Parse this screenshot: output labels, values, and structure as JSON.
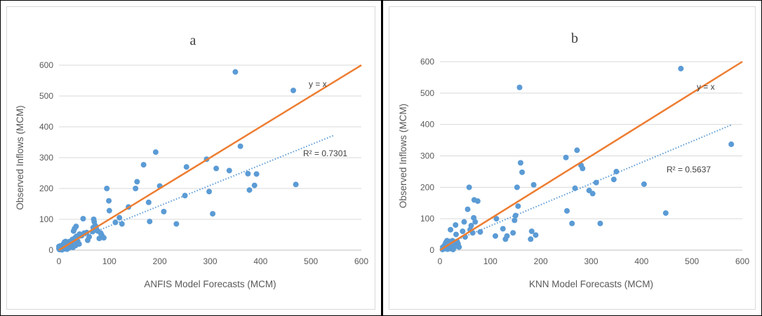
{
  "chart_data": [
    {
      "type": "scatter",
      "title": "a",
      "xlabel": "ANFIS Model Forecasts (MCM)",
      "ylabel": "Observed Inflows (MCM)",
      "xlim": [
        0,
        600
      ],
      "ylim": [
        0,
        600
      ],
      "xticks": [
        "0",
        "100",
        "200",
        "300",
        "400",
        "500",
        "600"
      ],
      "yticks": [
        "0",
        "100",
        "200",
        "300",
        "400",
        "500",
        "600"
      ],
      "grid": true,
      "colors": {
        "points": "#5b9bd5",
        "identity": "#ed7d31",
        "trend": "#5b9bd5"
      },
      "identity_label": "y = x",
      "identity_line": [
        [
          0,
          0
        ],
        [
          600,
          600
        ]
      ],
      "r2_label": "R² = 0.7301",
      "trend_line": [
        [
          0,
          12
        ],
        [
          545,
          372
        ]
      ],
      "points": [
        [
          0,
          5
        ],
        [
          0,
          12
        ],
        [
          1,
          2
        ],
        [
          2,
          8
        ],
        [
          3,
          14
        ],
        [
          4,
          3
        ],
        [
          5,
          10
        ],
        [
          6,
          1
        ],
        [
          8,
          6
        ],
        [
          9,
          20
        ],
        [
          10,
          4
        ],
        [
          11,
          26
        ],
        [
          12,
          15
        ],
        [
          13,
          28
        ],
        [
          14,
          9
        ],
        [
          15,
          18
        ],
        [
          16,
          3
        ],
        [
          17,
          22
        ],
        [
          18,
          11
        ],
        [
          19,
          27
        ],
        [
          20,
          7
        ],
        [
          21,
          24
        ],
        [
          22,
          16
        ],
        [
          24,
          30
        ],
        [
          25,
          13
        ],
        [
          26,
          20
        ],
        [
          27,
          35
        ],
        [
          28,
          9
        ],
        [
          29,
          62
        ],
        [
          30,
          25
        ],
        [
          31,
          70
        ],
        [
          32,
          40
        ],
        [
          33,
          15
        ],
        [
          34,
          77
        ],
        [
          35,
          45
        ],
        [
          36,
          20
        ],
        [
          37,
          30
        ],
        [
          40,
          20
        ],
        [
          41,
          52
        ],
        [
          45,
          47
        ],
        [
          48,
          102
        ],
        [
          50,
          55
        ],
        [
          55,
          57
        ],
        [
          57,
          32
        ],
        [
          60,
          43
        ],
        [
          67,
          60
        ],
        [
          68,
          73
        ],
        [
          69,
          100
        ],
        [
          70,
          92
        ],
        [
          72,
          80
        ],
        [
          74,
          70
        ],
        [
          77,
          62
        ],
        [
          80,
          38
        ],
        [
          83,
          55
        ],
        [
          85,
          48
        ],
        [
          89,
          40
        ],
        [
          95,
          200
        ],
        [
          99,
          160
        ],
        [
          100,
          128
        ],
        [
          112,
          90
        ],
        [
          120,
          105
        ],
        [
          125,
          85
        ],
        [
          138,
          140
        ],
        [
          152,
          200
        ],
        [
          155,
          222
        ],
        [
          168,
          277
        ],
        [
          178,
          155
        ],
        [
          180,
          93
        ],
        [
          192,
          318
        ],
        [
          200,
          208
        ],
        [
          208,
          125
        ],
        [
          233,
          85
        ],
        [
          250,
          177
        ],
        [
          253,
          270
        ],
        [
          293,
          295
        ],
        [
          298,
          190
        ],
        [
          305,
          118
        ],
        [
          312,
          265
        ],
        [
          338,
          258
        ],
        [
          350,
          578
        ],
        [
          360,
          337
        ],
        [
          375,
          248
        ],
        [
          378,
          195
        ],
        [
          388,
          210
        ],
        [
          392,
          247
        ],
        [
          465,
          518
        ],
        [
          470,
          213
        ]
      ]
    },
    {
      "type": "scatter",
      "title": "b",
      "xlabel": "KNN Model Forecasts (MCM)",
      "ylabel": "Observed Inflows (MCM)",
      "xlim": [
        0,
        600
      ],
      "ylim": [
        0,
        600
      ],
      "xticks": [
        "0",
        "100",
        "200",
        "300",
        "400",
        "500",
        "600"
      ],
      "yticks": [
        "0",
        "100",
        "200",
        "300",
        "400",
        "500",
        "600"
      ],
      "grid": true,
      "colors": {
        "points": "#5b9bd5",
        "identity": "#ed7d31",
        "trend": "#5b9bd5"
      },
      "identity_label": "y = x",
      "identity_line": [
        [
          0,
          0
        ],
        [
          600,
          600
        ]
      ],
      "r2_label": "R² = 0.5637",
      "trend_line": [
        [
          0,
          10
        ],
        [
          580,
          400
        ]
      ],
      "points": [
        [
          5,
          2
        ],
        [
          6,
          10
        ],
        [
          8,
          4
        ],
        [
          10,
          18
        ],
        [
          11,
          6
        ],
        [
          12,
          25
        ],
        [
          13,
          12
        ],
        [
          14,
          30
        ],
        [
          15,
          3
        ],
        [
          16,
          20
        ],
        [
          17,
          8
        ],
        [
          18,
          28
        ],
        [
          19,
          15
        ],
        [
          20,
          5
        ],
        [
          21,
          65
        ],
        [
          22,
          22
        ],
        [
          24,
          12
        ],
        [
          25,
          30
        ],
        [
          26,
          2
        ],
        [
          27,
          18
        ],
        [
          28,
          8
        ],
        [
          30,
          22
        ],
        [
          31,
          80
        ],
        [
          32,
          50
        ],
        [
          34,
          28
        ],
        [
          36,
          20
        ],
        [
          38,
          10
        ],
        [
          45,
          60
        ],
        [
          48,
          90
        ],
        [
          50,
          42
        ],
        [
          55,
          130
        ],
        [
          58,
          200
        ],
        [
          60,
          65
        ],
        [
          62,
          78
        ],
        [
          65,
          55
        ],
        [
          67,
          103
        ],
        [
          68,
          160
        ],
        [
          70,
          90
        ],
        [
          75,
          156
        ],
        [
          80,
          58
        ],
        [
          110,
          45
        ],
        [
          112,
          100
        ],
        [
          125,
          68
        ],
        [
          130,
          35
        ],
        [
          133,
          45
        ],
        [
          145,
          55
        ],
        [
          148,
          95
        ],
        [
          150,
          110
        ],
        [
          153,
          200
        ],
        [
          155,
          140
        ],
        [
          158,
          518
        ],
        [
          160,
          278
        ],
        [
          163,
          248
        ],
        [
          180,
          35
        ],
        [
          182,
          60
        ],
        [
          186,
          208
        ],
        [
          190,
          48
        ],
        [
          250,
          295
        ],
        [
          252,
          125
        ],
        [
          262,
          85
        ],
        [
          268,
          197
        ],
        [
          272,
          318
        ],
        [
          280,
          270
        ],
        [
          283,
          260
        ],
        [
          296,
          190
        ],
        [
          303,
          180
        ],
        [
          310,
          215
        ],
        [
          318,
          85
        ],
        [
          345,
          225
        ],
        [
          350,
          250
        ],
        [
          405,
          210
        ],
        [
          448,
          118
        ],
        [
          478,
          578
        ],
        [
          578,
          337
        ]
      ]
    }
  ]
}
